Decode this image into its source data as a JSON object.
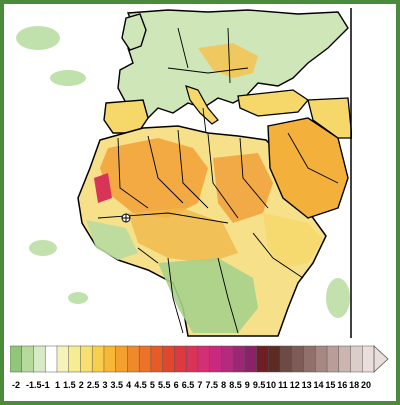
{
  "colorbar": {
    "labels": [
      "-2",
      "-1.5",
      "-1",
      "1",
      "1.5",
      "2",
      "2.5",
      "3",
      "3.5",
      "4",
      "4.5",
      "5",
      "5.5",
      "6",
      "6.5",
      "7",
      "7.5",
      "8",
      "8.5",
      "9",
      "9.5",
      "10",
      "11",
      "12",
      "13",
      "14",
      "15",
      "16",
      "18",
      "20"
    ],
    "colors": [
      "#8fc67a",
      "#b6d99d",
      "#d6eac3",
      "#ffffff",
      "#f6f3b8",
      "#f6ec92",
      "#f8e070",
      "#f8cf4c",
      "#f6b835",
      "#f3a02e",
      "#ef8a2b",
      "#eb7228",
      "#e65b27",
      "#e0472c",
      "#dc3a3e",
      "#d83458",
      "#d42f74",
      "#c9297f",
      "#b52a7d",
      "#9d2775",
      "#8a2366",
      "#6f1f24",
      "#5e2a24",
      "#6d4a44",
      "#7d5c57",
      "#91706b",
      "#a68781",
      "#b89d98",
      "#cab5b1",
      "#dbcdca",
      "#e9dedb"
    ]
  },
  "map": {
    "region": "North Africa and Middle East",
    "ocean_color": "#ffffff",
    "land_outline_color": "#000000"
  }
}
